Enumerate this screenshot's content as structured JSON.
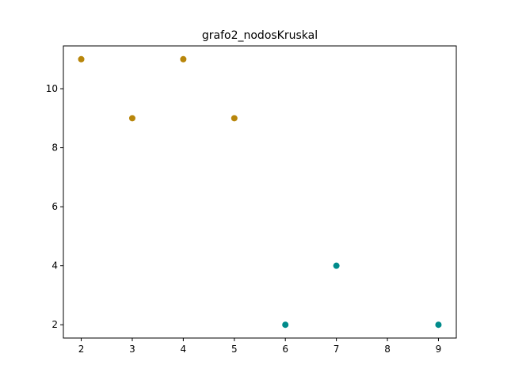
{
  "chart_data": {
    "type": "scatter",
    "title": "grafo2_nodosKruskal",
    "xlabel": "",
    "ylabel": "",
    "xlim": [
      1.65,
      9.35
    ],
    "ylim": [
      1.55,
      11.45
    ],
    "xticks": [
      2,
      3,
      4,
      5,
      6,
      7,
      8,
      9
    ],
    "yticks": [
      2,
      4,
      6,
      8,
      10
    ],
    "grid": false,
    "series": [
      {
        "color": "#b8860b",
        "points": [
          {
            "x": 2,
            "y": 11
          },
          {
            "x": 3,
            "y": 9
          },
          {
            "x": 4,
            "y": 11
          },
          {
            "x": 5,
            "y": 9
          }
        ]
      },
      {
        "color": "#008b8b",
        "points": [
          {
            "x": 6,
            "y": 2
          },
          {
            "x": 7,
            "y": 4
          },
          {
            "x": 9,
            "y": 2
          }
        ]
      }
    ]
  }
}
